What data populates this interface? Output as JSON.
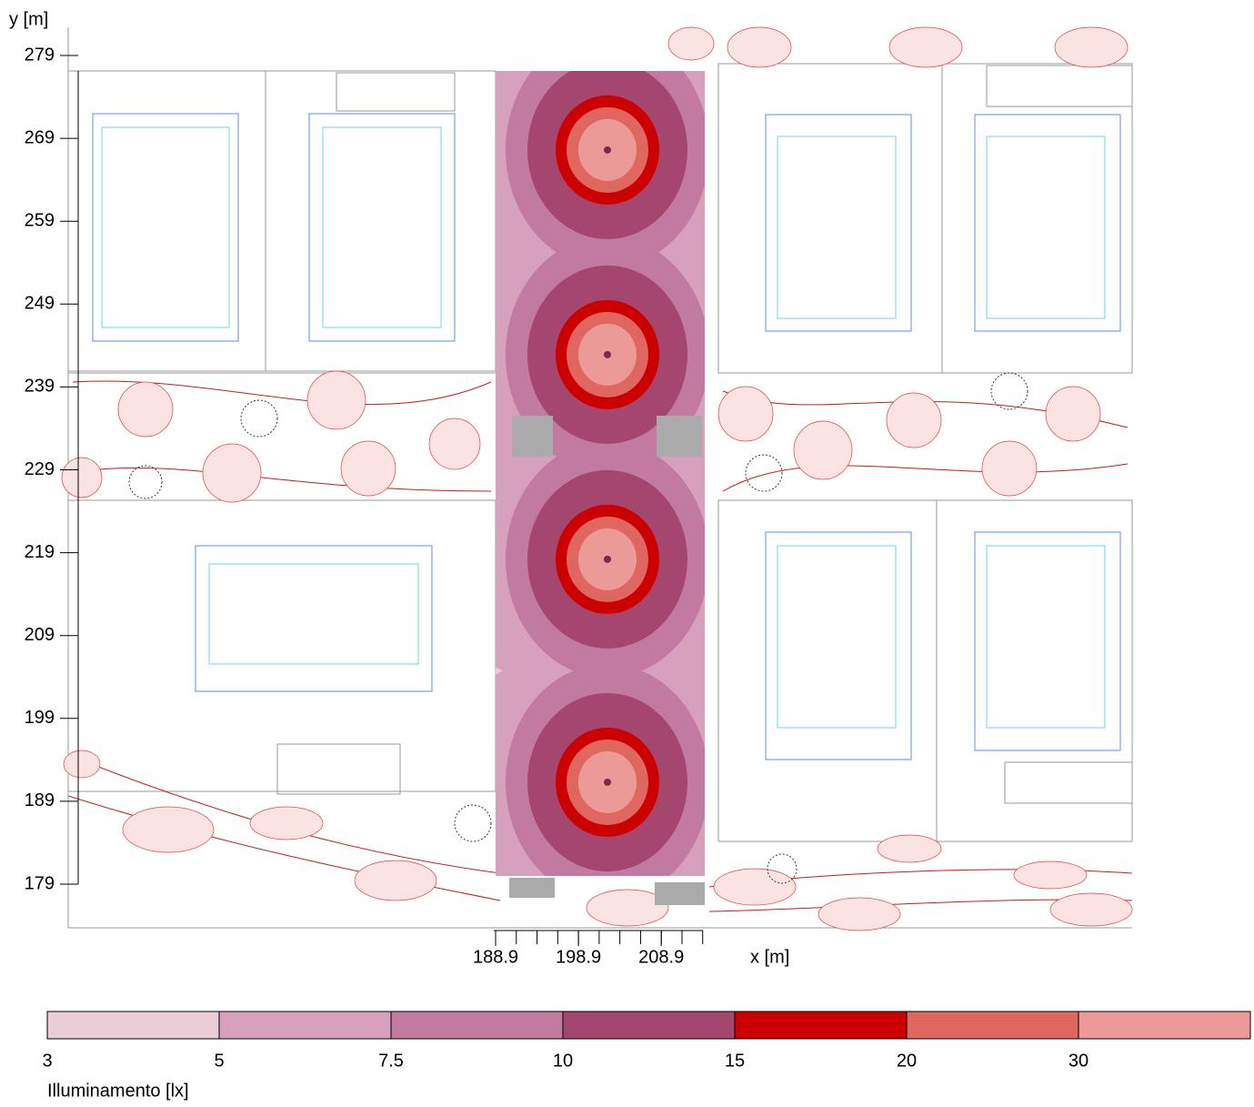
{
  "chart_data": {
    "type": "contour",
    "x_label": "x [m]",
    "y_label": "y [m]",
    "xlim": [
      188.9,
      214.1
    ],
    "xticks": [
      188.9,
      198.9,
      208.9
    ],
    "ylim": [
      179,
      279
    ],
    "yticks": [
      179,
      189,
      199,
      209,
      219,
      229,
      239,
      249,
      259,
      269,
      279
    ],
    "luminaires": {
      "x": [
        202.4,
        202.4,
        202.4,
        202.4
      ],
      "y": [
        267.6,
        242.9,
        218.2,
        191.3
      ]
    },
    "colorbar": {
      "label": "Illuminamento [lx]",
      "levels": [
        3,
        5,
        7.5,
        10,
        15,
        20,
        30
      ],
      "colors": [
        "#ebcdd9",
        "#d7a0bd",
        "#c27aa0",
        "#a4466e",
        "#cc0000",
        "#e06660",
        "#ec9a98"
      ]
    }
  }
}
